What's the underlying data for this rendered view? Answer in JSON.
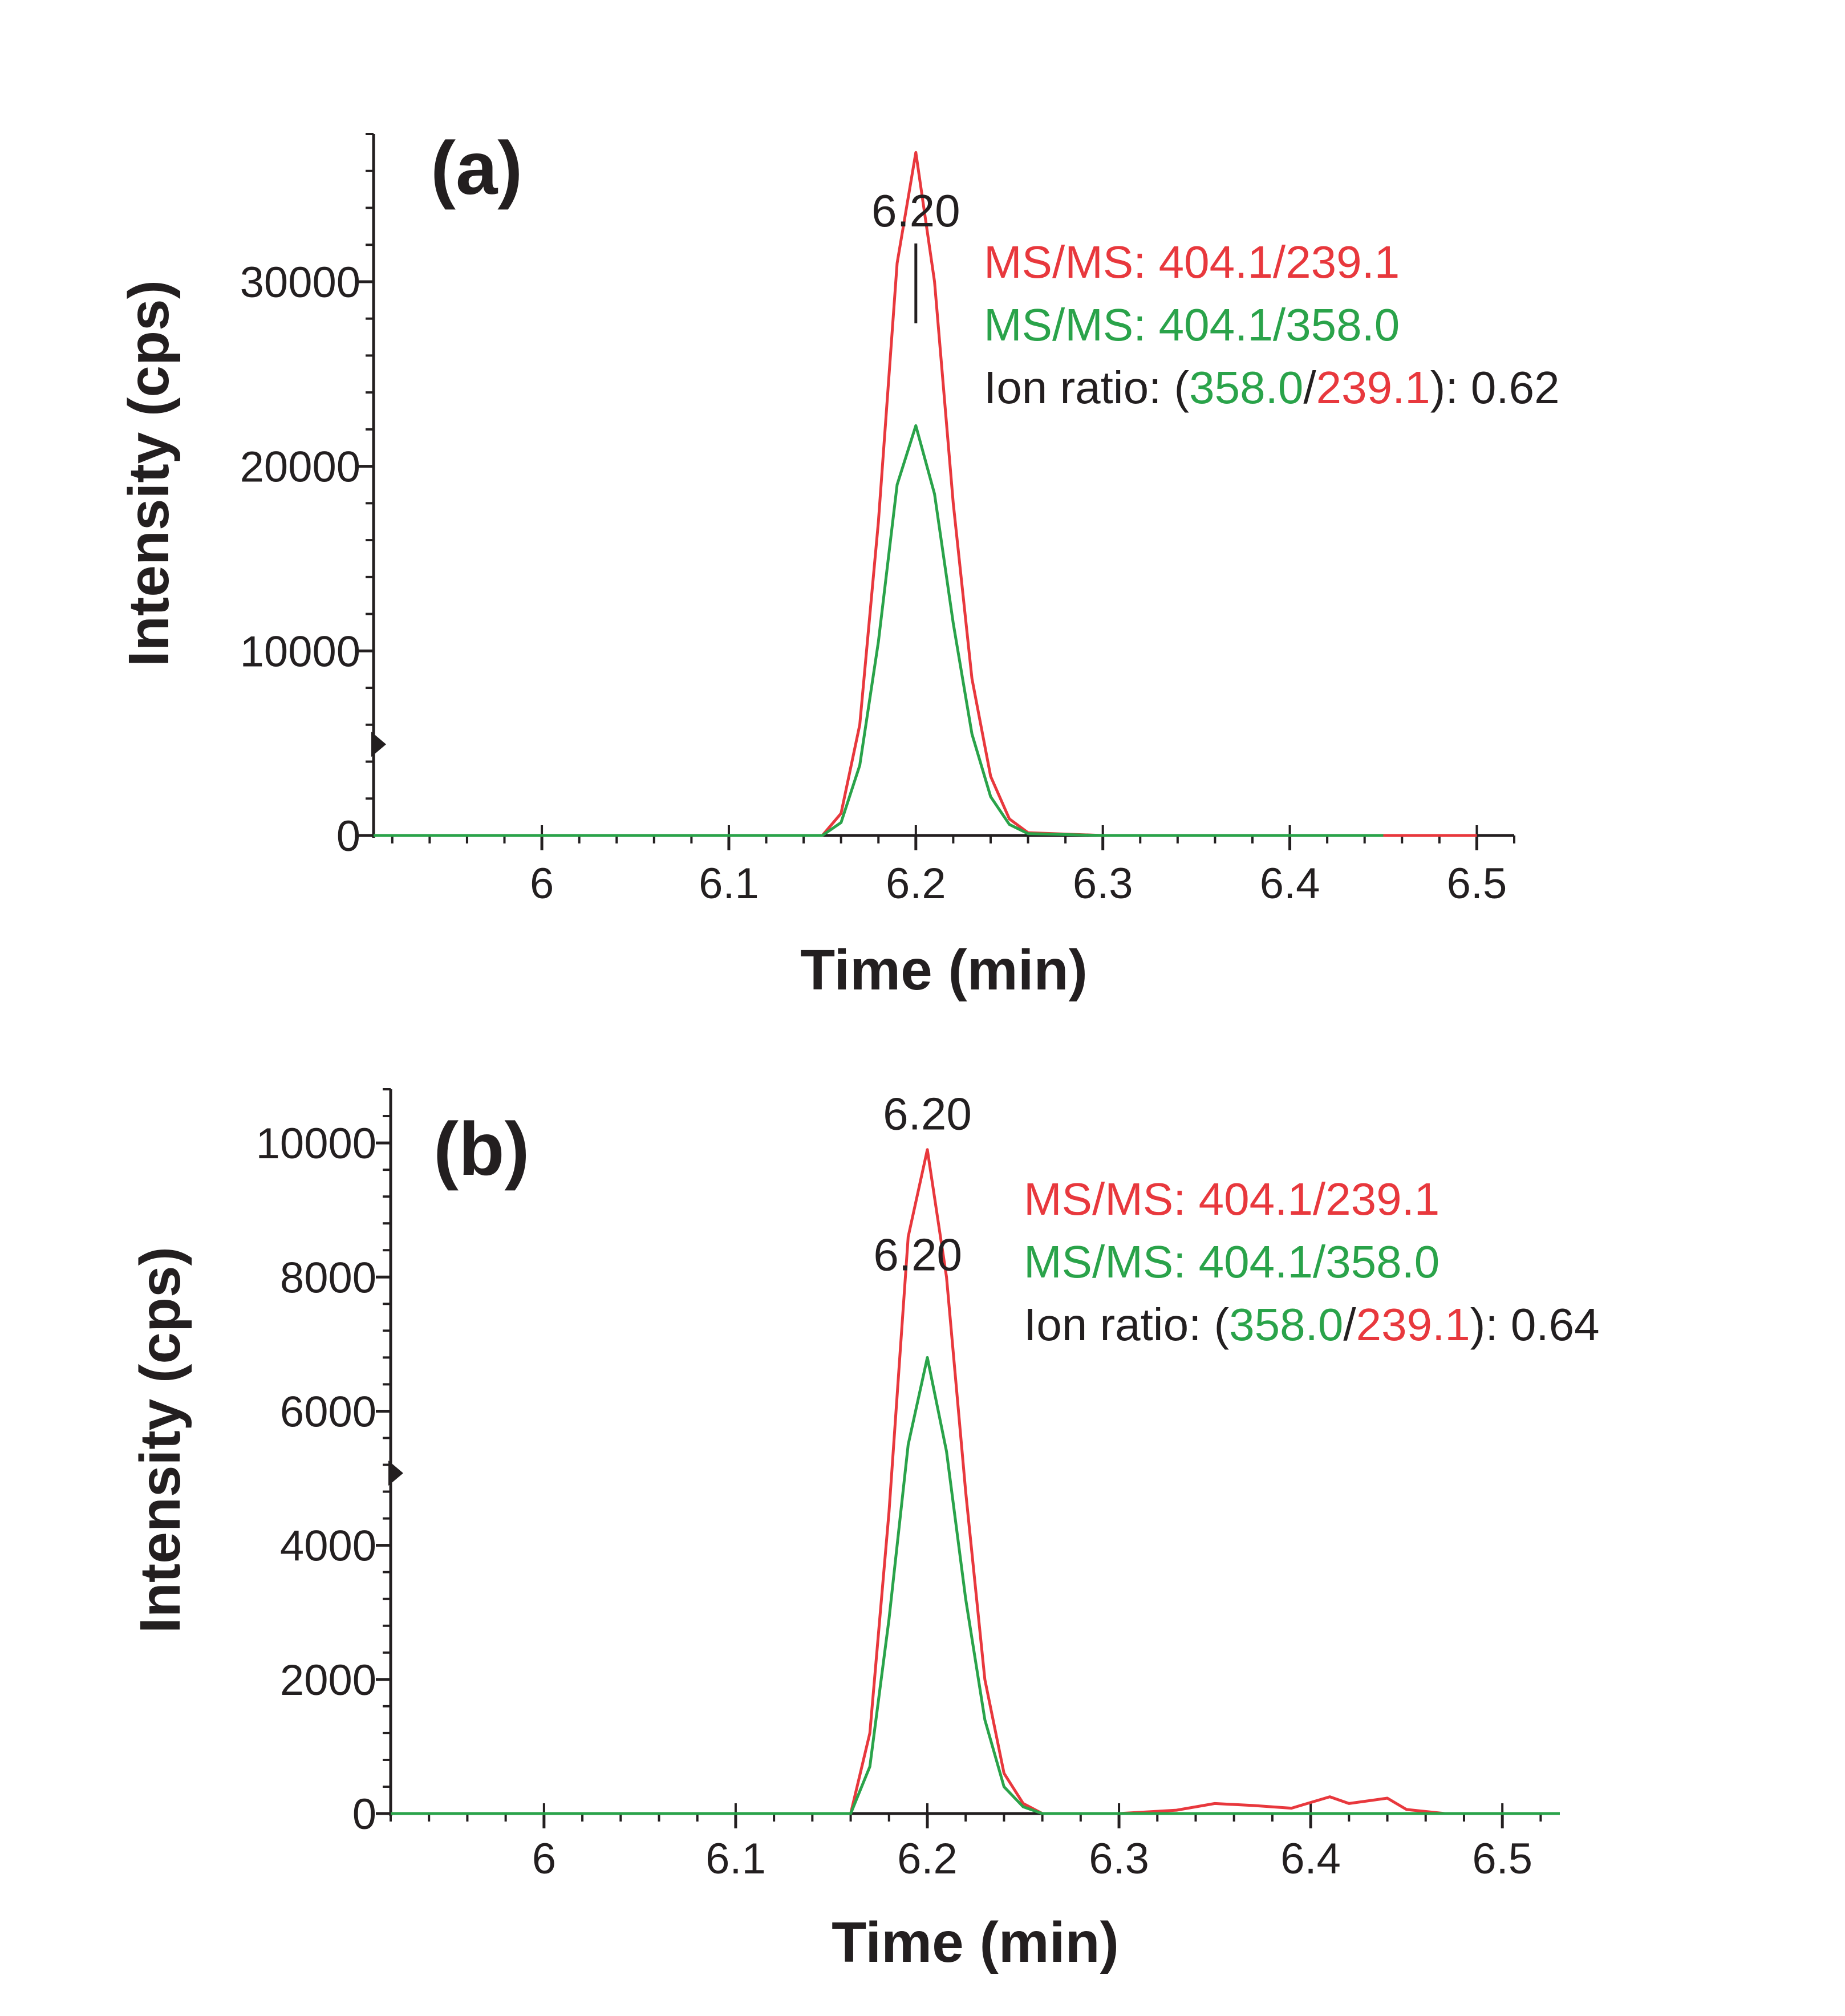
{
  "chart_data": [
    {
      "type": "line",
      "panel_label": "(a)",
      "xlabel": "Time (min)",
      "ylabel": "Intensity (cps)",
      "xlim": [
        5.91,
        6.52
      ],
      "ylim": [
        0,
        38000
      ],
      "x_ticks": [
        6,
        6.1,
        6.2,
        6.3,
        6.4,
        6.5
      ],
      "x_tick_labels": [
        "6",
        "6.1",
        "6.2",
        "6.3",
        "6.4",
        "6.5"
      ],
      "y_ticks": [
        0,
        10000,
        20000,
        30000
      ],
      "y_tick_labels": [
        "0",
        "10000",
        "20000",
        "30000"
      ],
      "peak_labels": [
        {
          "text": "6.20",
          "x": 6.2,
          "y": 33000
        }
      ],
      "legend": [
        {
          "text": "MS/MS: 404.1/239.1",
          "color": "#e8383d"
        },
        {
          "text": "MS/MS: 404.1/358.0",
          "color": "#2aa34a"
        }
      ],
      "ion_ratio": {
        "prefix": "Ion ratio: (",
        "num": "358.0",
        "sep": "/",
        "den": "239.1",
        "suffix": "): 0.62"
      },
      "series": [
        {
          "name": "MS/MS: 404.1/239.1",
          "color": "#e8383d",
          "x": [
            5.91,
            6.0,
            6.1,
            6.15,
            6.16,
            6.17,
            6.18,
            6.19,
            6.2,
            6.21,
            6.22,
            6.23,
            6.24,
            6.25,
            6.26,
            6.3,
            6.4,
            6.49,
            6.5
          ],
          "y": [
            0,
            0,
            0,
            0,
            1200,
            6000,
            17000,
            31000,
            37000,
            30000,
            18000,
            8500,
            3200,
            900,
            150,
            0,
            0,
            0,
            0
          ]
        },
        {
          "name": "MS/MS: 404.1/358.0",
          "color": "#2aa34a",
          "x": [
            5.91,
            6.0,
            6.1,
            6.15,
            6.16,
            6.17,
            6.18,
            6.19,
            6.2,
            6.21,
            6.22,
            6.23,
            6.24,
            6.25,
            6.26,
            6.3,
            6.4,
            6.45
          ],
          "y": [
            0,
            0,
            0,
            0,
            700,
            3800,
            10500,
            19000,
            22200,
            18500,
            11500,
            5500,
            2100,
            600,
            100,
            0,
            0,
            0
          ]
        }
      ]
    },
    {
      "type": "line",
      "panel_label": "(b)",
      "xlabel": "Time (min)",
      "ylabel": "Intensity (cps)",
      "xlim": [
        5.92,
        6.53
      ],
      "ylim": [
        0,
        10800
      ],
      "x_ticks": [
        6,
        6.1,
        6.2,
        6.3,
        6.4,
        6.5
      ],
      "x_tick_labels": [
        "6",
        "6.1",
        "6.2",
        "6.3",
        "6.4",
        "6.5"
      ],
      "y_ticks": [
        0,
        2000,
        4000,
        6000,
        8000,
        10000
      ],
      "y_tick_labels": [
        "0",
        "2000",
        "4000",
        "6000",
        "8000",
        "10000"
      ],
      "peak_labels": [
        {
          "text": "6.20",
          "x": 6.2,
          "y": 10200
        },
        {
          "text": "6.20",
          "x": 6.195,
          "y": 8100
        }
      ],
      "legend": [
        {
          "text": "MS/MS: 404.1/239.1",
          "color": "#e8383d"
        },
        {
          "text": "MS/MS: 404.1/358.0",
          "color": "#2aa34a"
        }
      ],
      "ion_ratio": {
        "prefix": "Ion ratio: (",
        "num": "358.0",
        "sep": "/",
        "den": "239.1",
        "suffix": "): 0.64"
      },
      "series": [
        {
          "name": "MS/MS: 404.1/239.1",
          "color": "#e8383d",
          "x": [
            5.92,
            6.0,
            6.1,
            6.16,
            6.17,
            6.18,
            6.19,
            6.2,
            6.21,
            6.22,
            6.23,
            6.24,
            6.25,
            6.26,
            6.3,
            6.33,
            6.35,
            6.37,
            6.39,
            6.41,
            6.42,
            6.44,
            6.45,
            6.47,
            6.5,
            6.53
          ],
          "y": [
            0,
            0,
            0,
            0,
            1200,
            4500,
            8600,
            9900,
            8000,
            4800,
            2000,
            600,
            150,
            0,
            0,
            50,
            150,
            120,
            80,
            250,
            150,
            230,
            60,
            0,
            0,
            0
          ]
        },
        {
          "name": "MS/MS: 404.1/358.0",
          "color": "#2aa34a",
          "x": [
            5.92,
            6.0,
            6.1,
            6.16,
            6.17,
            6.18,
            6.19,
            6.2,
            6.21,
            6.22,
            6.23,
            6.24,
            6.25,
            6.26,
            6.3,
            6.35,
            6.4,
            6.45,
            6.5,
            6.53
          ],
          "y": [
            0,
            0,
            0,
            0,
            700,
            2900,
            5500,
            6800,
            5400,
            3200,
            1400,
            400,
            100,
            0,
            0,
            0,
            0,
            0,
            0,
            0
          ]
        }
      ]
    }
  ]
}
